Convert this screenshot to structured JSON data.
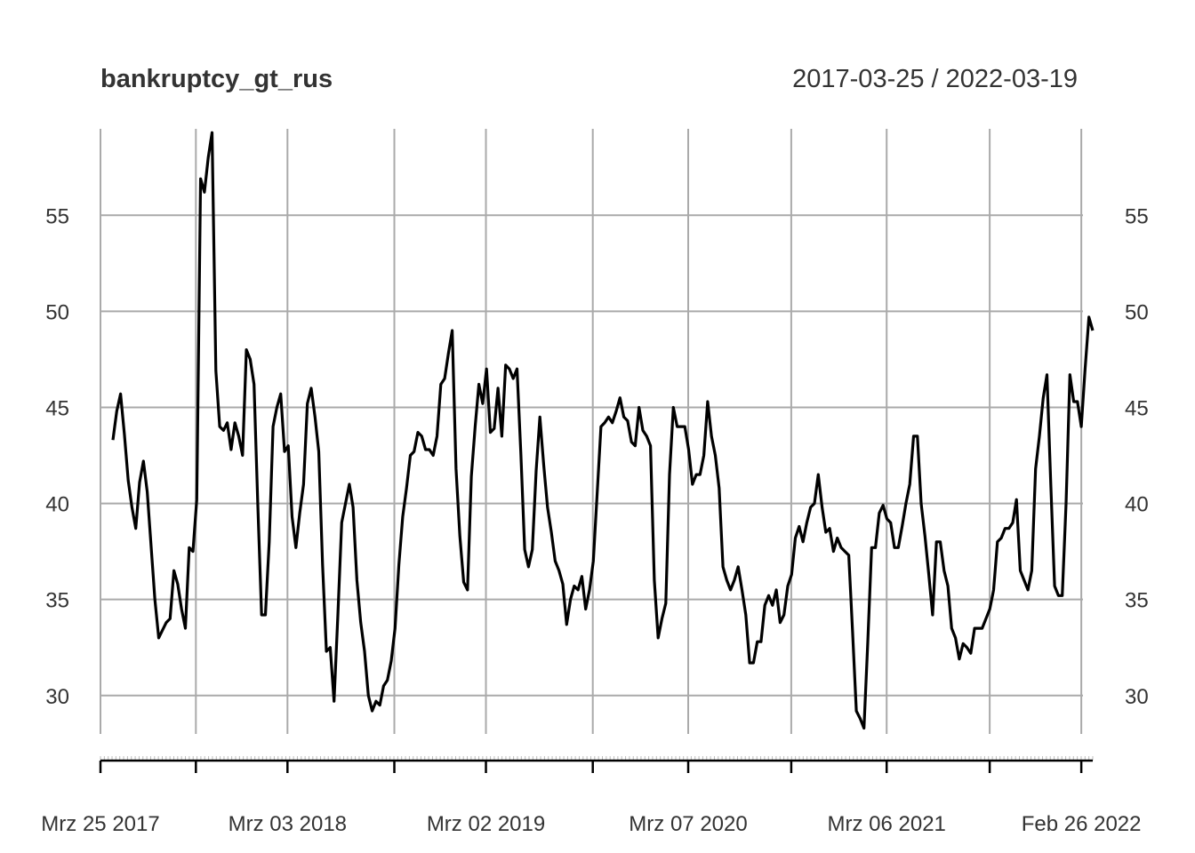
{
  "chart_data": {
    "type": "line",
    "title": "bankruptcy_gt_rus",
    "date_range": "2017-03-25 / 2022-03-19",
    "xlabel": "",
    "ylabel": "",
    "x_start": "2017-03-25",
    "x_end": "2022-03-19",
    "frequency": "weekly",
    "ylim": [
      28,
      59.5
    ],
    "grid": true,
    "y_ticks": [
      30,
      35,
      40,
      45,
      50,
      55
    ],
    "x_ticks": [
      {
        "date": "2017-03-25",
        "label": "Mrz 25 2017"
      },
      {
        "date": "2018-03-03",
        "label": "Mrz 03 2018"
      },
      {
        "date": "2019-03-02",
        "label": "Mrz 02 2019"
      },
      {
        "date": "2020-03-07",
        "label": "Mrz 07 2020"
      },
      {
        "date": "2021-03-06",
        "label": "Mrz 06 2021"
      },
      {
        "date": "2022-02-26",
        "label": "Feb 26 2022"
      }
    ],
    "x_minor_gridlines": [
      "2017-09-16",
      "2018-09-15",
      "2019-09-14",
      "2020-09-12",
      "2021-09-11"
    ],
    "series": [
      {
        "color": "#000000",
        "values": [
          43.3,
          44.8,
          45.7,
          43.6,
          41.2,
          39.8,
          38.7,
          41.1,
          42.2,
          40.6,
          37.8,
          35.0,
          33.0,
          33.4,
          33.8,
          34.0,
          36.5,
          35.8,
          34.5,
          33.5,
          37.7,
          37.5,
          40.2,
          56.9,
          56.2,
          58.0,
          59.3,
          46.9,
          44.0,
          43.8,
          44.2,
          42.8,
          44.2,
          43.5,
          42.5,
          48.0,
          47.5,
          46.2,
          40.0,
          34.2,
          34.2,
          38.0,
          44.0,
          45.0,
          45.7,
          42.7,
          43.0,
          39.3,
          37.7,
          39.5,
          41.0,
          45.2,
          46.0,
          44.5,
          42.7,
          36.8,
          32.3,
          32.5,
          29.7,
          34.2,
          39.0,
          40.0,
          41.0,
          39.8,
          36.0,
          33.8,
          32.3,
          30.0,
          29.2,
          29.7,
          29.5,
          30.5,
          30.8,
          31.8,
          33.5,
          36.8,
          39.3,
          40.8,
          42.5,
          42.7,
          43.7,
          43.5,
          42.8,
          42.8,
          42.5,
          43.5,
          46.2,
          46.5,
          47.8,
          49.0,
          41.8,
          38.3,
          35.9,
          35.5,
          41.4,
          44.0,
          46.2,
          45.2,
          47.0,
          43.7,
          43.9,
          46.0,
          43.5,
          47.2,
          47.0,
          46.5,
          47.0,
          42.6,
          37.6,
          36.7,
          37.6,
          41.7,
          44.5,
          42.0,
          39.8,
          38.5,
          37.0,
          36.5,
          35.8,
          33.7,
          35.0,
          35.7,
          35.5,
          36.2,
          34.5,
          35.5,
          37.0,
          40.5,
          44.0,
          44.2,
          44.5,
          44.2,
          44.8,
          45.5,
          44.5,
          44.3,
          43.2,
          43.0,
          45.0,
          43.8,
          43.5,
          43.0,
          36.0,
          33.0,
          34.0,
          34.8,
          41.5,
          45.0,
          44.0,
          44.0,
          44.0,
          42.8,
          41.0,
          41.5,
          41.5,
          42.5,
          45.3,
          43.5,
          42.5,
          40.8,
          36.7,
          36.0,
          35.5,
          36.0,
          36.7,
          35.5,
          34.2,
          31.7,
          31.7,
          32.8,
          32.8,
          34.7,
          35.2,
          34.7,
          35.5,
          33.8,
          34.2,
          35.7,
          36.3,
          38.2,
          38.8,
          38.0,
          39.0,
          39.8,
          40.0,
          41.5,
          39.8,
          38.5,
          38.7,
          37.5,
          38.2,
          37.7,
          37.5,
          37.3,
          33.3,
          29.2,
          28.8,
          28.3,
          32.8,
          37.7,
          37.7,
          39.5,
          39.9,
          39.2,
          39.0,
          37.7,
          37.7,
          38.8,
          40.0,
          41.0,
          43.5,
          43.5,
          40.0,
          38.3,
          36.3,
          34.2,
          38.0,
          38.0,
          36.5,
          35.7,
          33.5,
          33.0,
          31.9,
          32.7,
          32.5,
          32.2,
          33.5,
          33.5,
          33.5,
          34.0,
          34.5,
          35.5,
          38.0,
          38.2,
          38.7,
          38.7,
          39.0,
          40.2,
          36.5,
          36.0,
          35.5,
          36.5,
          41.8,
          43.5,
          45.5,
          46.7,
          41.0,
          35.7,
          35.2,
          35.2,
          40.0,
          46.7,
          45.3,
          45.3,
          44.0,
          47.0,
          49.7,
          49.0
        ]
      }
    ]
  }
}
